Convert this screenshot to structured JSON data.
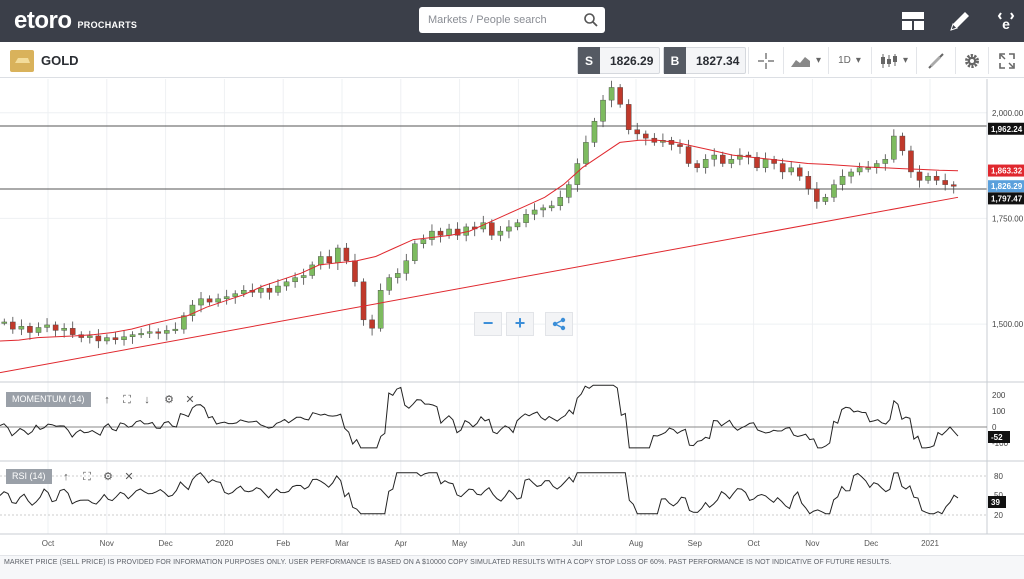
{
  "app": {
    "logo": "etoro",
    "logo_sub": "PROCHARTS"
  },
  "search": {
    "placeholder": "Markets / People search"
  },
  "toolbar_icons": [
    "layout-icon",
    "pencil-icon",
    "etoro-profile-icon"
  ],
  "instrument": {
    "name": "GOLD",
    "icon": "gold-bar-icon"
  },
  "prices": {
    "sell_label": "S",
    "sell": "1826.29",
    "buy_label": "B",
    "buy": "1827.34"
  },
  "chart_tools": {
    "timeframe": "1D"
  },
  "chart_data": {
    "type": "candlestick",
    "instrument": "GOLD",
    "x_labels": [
      "Oct",
      "Nov",
      "Dec",
      "2020",
      "Feb",
      "Mar",
      "Apr",
      "May",
      "Jun",
      "Jul",
      "Aug",
      "Sep",
      "Oct",
      "Nov",
      "Dec",
      "2021"
    ],
    "price_axis": [
      "2,000.00",
      "1,750.00",
      "1,500.00"
    ],
    "ylim": [
      1370,
      2080
    ],
    "price_markers": [
      {
        "label": "1,962.24",
        "color": "#111111"
      },
      {
        "label": "1,863.32",
        "color": "#e0282e"
      },
      {
        "label": "1,826.29",
        "color": "#5aa0dc"
      },
      {
        "label": "1,797.47",
        "color": "#111111"
      }
    ],
    "horizontal_lines": [
      1962.24,
      1797.47
    ],
    "close_series": [
      1505,
      1488,
      1495,
      1480,
      1492,
      1498,
      1485,
      1490,
      1475,
      1468,
      1472,
      1460,
      1468,
      1463,
      1470,
      1475,
      1478,
      1482,
      1478,
      1485,
      1488,
      1520,
      1545,
      1560,
      1552,
      1560,
      1565,
      1572,
      1580,
      1575,
      1585,
      1575,
      1590,
      1600,
      1610,
      1615,
      1640,
      1660,
      1645,
      1680,
      1650,
      1600,
      1510,
      1490,
      1580,
      1610,
      1620,
      1650,
      1690,
      1700,
      1720,
      1710,
      1725,
      1710,
      1730,
      1725,
      1740,
      1710,
      1720,
      1730,
      1740,
      1760,
      1770,
      1775,
      1780,
      1800,
      1830,
      1880,
      1930,
      1980,
      2030,
      2060,
      2020,
      1960,
      1950,
      1940,
      1930,
      1935,
      1925,
      1920,
      1880,
      1870,
      1890,
      1900,
      1880,
      1890,
      1900,
      1895,
      1870,
      1890,
      1880,
      1860,
      1870,
      1850,
      1820,
      1790,
      1800,
      1830,
      1850,
      1860,
      1870,
      1870,
      1880,
      1890,
      1945,
      1910,
      1860,
      1840,
      1850,
      1840,
      1830,
      1826
    ],
    "ma_short": [
      1460,
      1462,
      1468,
      1470,
      1472,
      1475,
      1480,
      1488,
      1500,
      1510,
      1520,
      1540,
      1555,
      1570,
      1590,
      1605,
      1620,
      1640,
      1645,
      1650,
      1660,
      1680,
      1700,
      1705,
      1710,
      1720,
      1740,
      1760,
      1780,
      1800,
      1830,
      1870,
      1900,
      1930,
      1935,
      1935,
      1930,
      1920,
      1910,
      1900,
      1895,
      1890,
      1885,
      1880,
      1878,
      1875,
      1872,
      1870,
      1868,
      1866,
      1864,
      1863
    ],
    "ma_long": [
      1385,
      1800
    ],
    "momentum": {
      "label": "MOMENTUM (14)",
      "axis": [
        "200",
        "100",
        "0",
        "-100"
      ],
      "current": "-52"
    },
    "rsi": {
      "label": "RSI (14)",
      "axis": [
        "80",
        "50",
        "20"
      ],
      "current": "39"
    }
  },
  "disclaimer": "MARKET PRICE (SELL PRICE) IS PROVIDED FOR INFORMATION PURPOSES ONLY. USER PERFORMANCE IS BASED ON A $10000 COPY SIMULATED RESULTS WITH A COPY STOP LOSS OF 60%. PAST PERFORMANCE IS NOT INDICATIVE OF FUTURE RESULTS."
}
